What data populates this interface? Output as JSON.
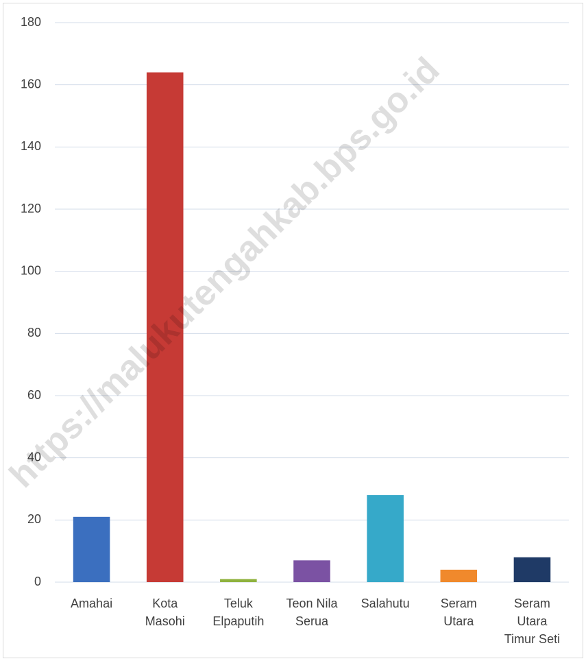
{
  "chart_data": {
    "type": "bar",
    "watermark": "https://malukutengahkab.bps.go.id",
    "categories": [
      "Amahai",
      "Kota Masohi",
      "Teluk Elpaputih",
      "Teon Nila Serua",
      "Salahutu",
      "Seram Utara",
      "Seram Utara Timur Seti"
    ],
    "values": [
      21,
      164,
      1,
      7,
      28,
      4,
      8
    ],
    "colors": [
      "#3b6fbf",
      "#c63a35",
      "#8fb23e",
      "#7b52a3",
      "#36a9c9",
      "#f0892c",
      "#1f3a66"
    ],
    "ylim": [
      0,
      180
    ],
    "yticks": [
      0,
      20,
      40,
      60,
      80,
      100,
      120,
      140,
      160,
      180
    ],
    "grid": true
  }
}
